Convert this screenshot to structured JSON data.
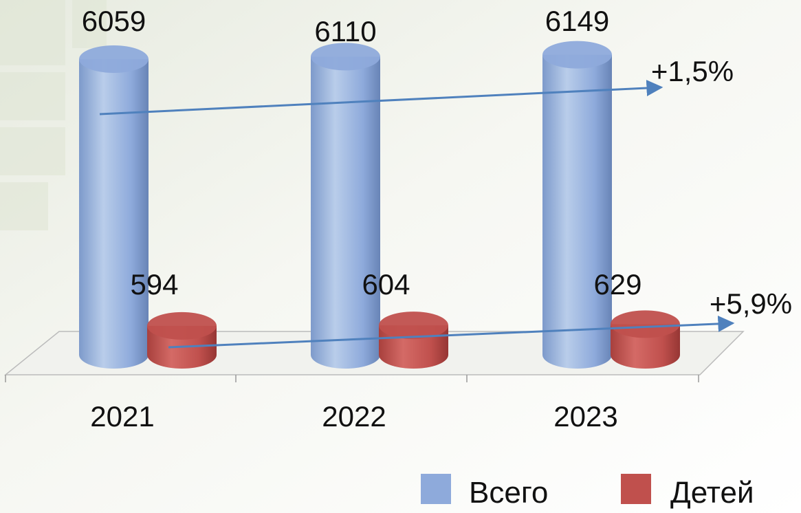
{
  "chart_data": {
    "type": "bar",
    "categories": [
      "2021",
      "2022",
      "2023"
    ],
    "series": [
      {
        "name": "Всего",
        "values": [
          6059,
          6110,
          6149
        ],
        "color": "#8eaadb"
      },
      {
        "name": "Детей",
        "values": [
          594,
          604,
          629
        ],
        "color": "#c0504d"
      }
    ],
    "annotations": [
      {
        "series": "Всего",
        "text": "+1,5%"
      },
      {
        "series": "Детей",
        "text": "+5,9%"
      }
    ],
    "trend_color": "#4f81bd",
    "ylim": [
      0,
      6400
    ],
    "legend": "bottom-right",
    "grid": false,
    "style": "3d-cylinder"
  }
}
